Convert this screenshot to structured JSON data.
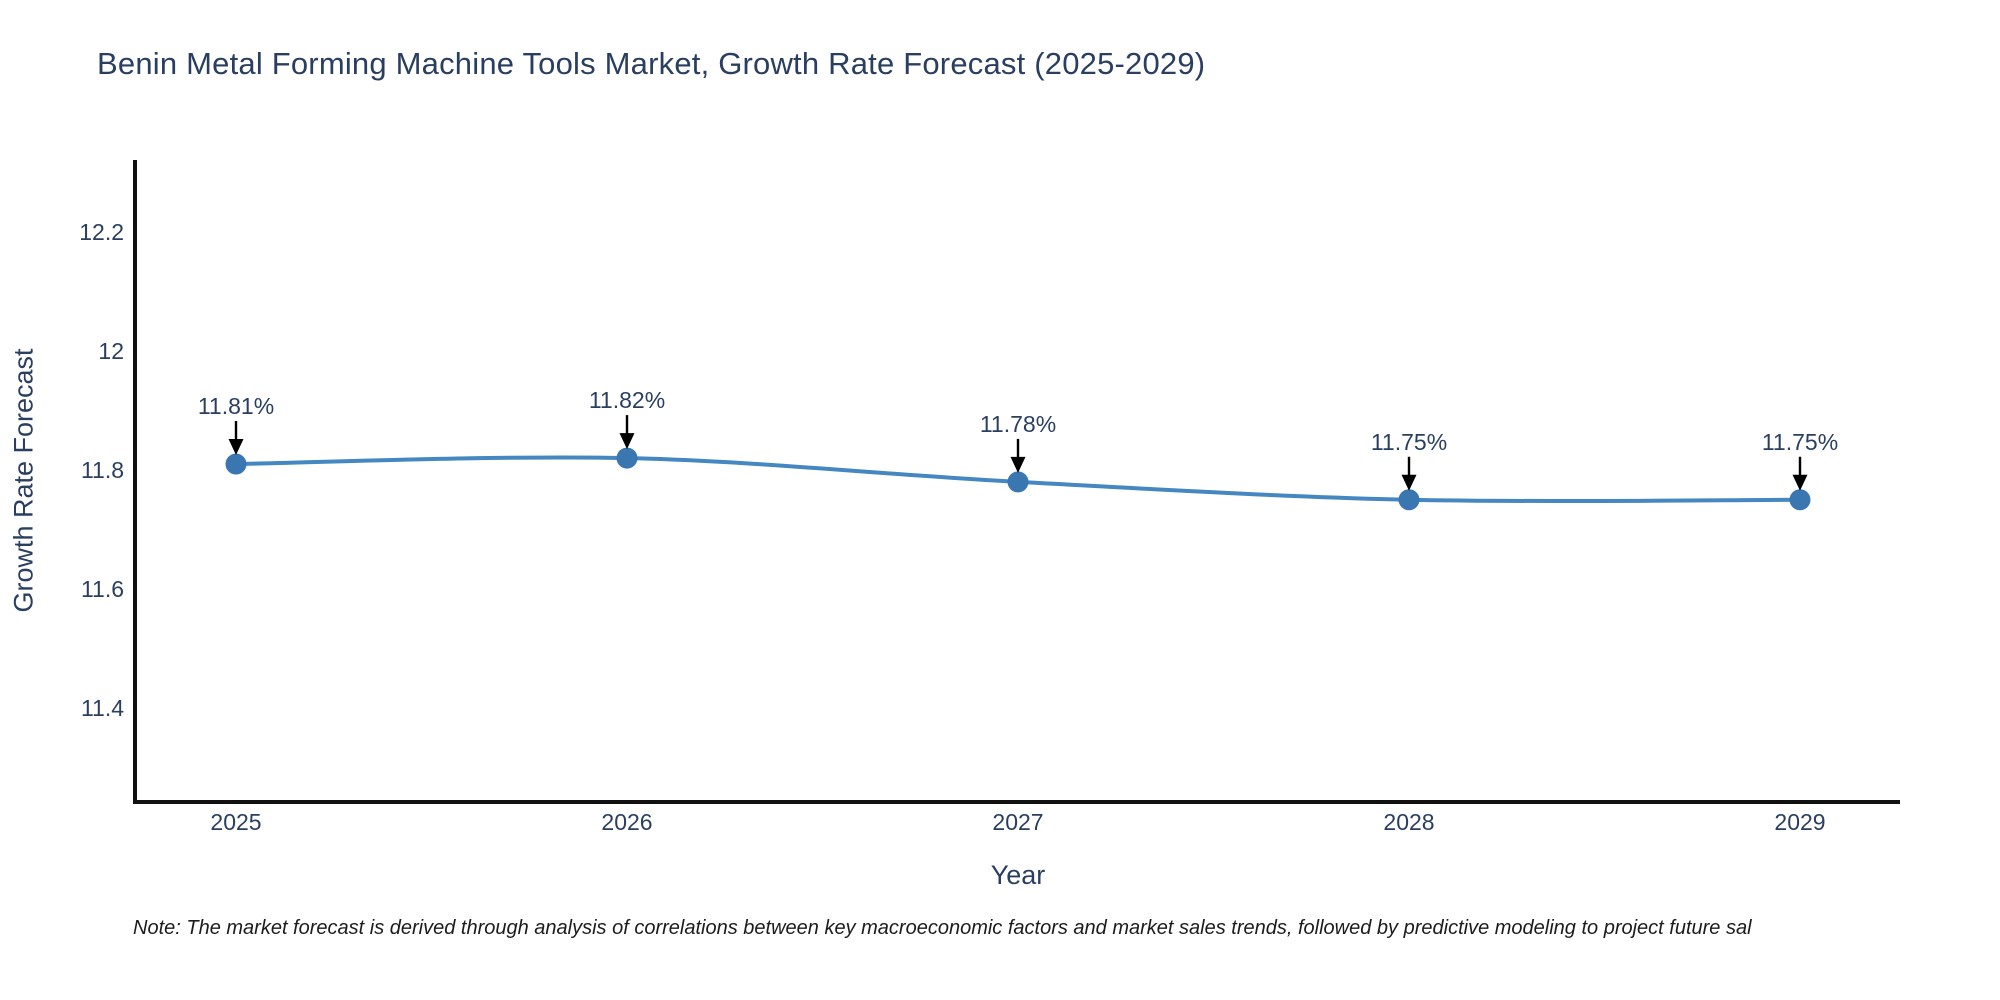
{
  "title": "Benin Metal Forming Machine Tools Market, Growth Rate Forecast (2025-2029)",
  "note": "Note: The market forecast is derived through analysis of correlations between key macroeconomic factors and market sales trends, followed by predictive modeling to project future sal",
  "chart_data": {
    "type": "line",
    "title": "Benin Metal Forming Machine Tools Market, Growth Rate Forecast (2025-2029)",
    "xlabel": "Year",
    "ylabel": "Growth Rate Forecast",
    "categories": [
      2025,
      2026,
      2027,
      2028,
      2029
    ],
    "series": [
      {
        "name": "Growth Rate Forecast",
        "unit": "%",
        "values": [
          11.81,
          11.82,
          11.78,
          11.75,
          11.75
        ]
      }
    ],
    "point_labels": [
      "11.81%",
      "11.82%",
      "11.78%",
      "11.75%",
      "11.75%"
    ],
    "x_tick_labels": [
      "2025",
      "2026",
      "2027",
      "2028",
      "2029"
    ],
    "y_tick_labels": [
      "12.2",
      "12",
      "11.8",
      "11.6",
      "11.4"
    ],
    "y_tick_values": [
      12.2,
      12.0,
      11.8,
      11.6,
      11.4
    ],
    "ylim": [
      11.25,
      12.32
    ],
    "grid": false,
    "legend": false,
    "line_shape": "spline",
    "annotations_have_arrows": true,
    "colors": {
      "line": "#4587c1",
      "marker": "#3a76af",
      "text": "#2a3f5f",
      "axis": "#111111",
      "arrow": "#000000",
      "note_text": "#1c1c1c",
      "background": "#ffffff"
    }
  }
}
